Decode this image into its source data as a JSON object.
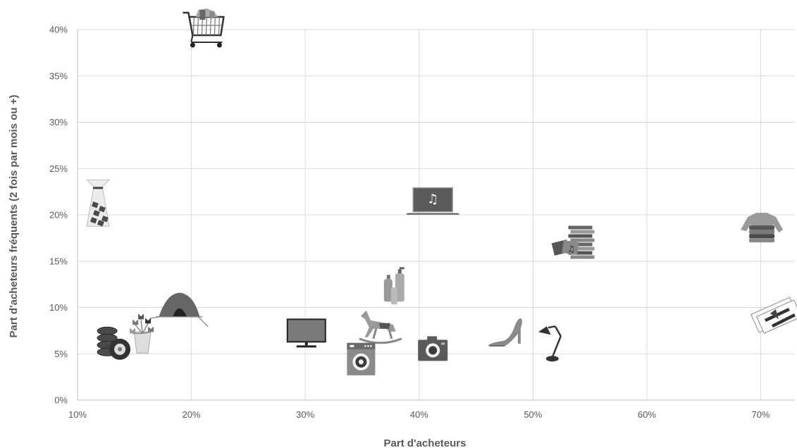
{
  "chart_data": {
    "type": "scatter",
    "title": "",
    "xlabel": "Part d'acheteurs",
    "ylabel": "Part d'acheteurs fréquents (2 fois par mois ou +)",
    "xlim": [
      0.1,
      0.73
    ],
    "ylim": [
      0.0,
      0.4
    ],
    "x_ticks": [
      {
        "value": 0.1,
        "label": "10%"
      },
      {
        "value": 0.2,
        "label": "20%"
      },
      {
        "value": 0.3,
        "label": "30%"
      },
      {
        "value": 0.4,
        "label": "40%"
      },
      {
        "value": 0.5,
        "label": "50%"
      },
      {
        "value": 0.6,
        "label": "60%"
      },
      {
        "value": 0.7,
        "label": "70%"
      }
    ],
    "y_ticks": [
      {
        "value": 0.0,
        "label": "0%"
      },
      {
        "value": 0.05,
        "label": "5%"
      },
      {
        "value": 0.1,
        "label": "10%"
      },
      {
        "value": 0.15,
        "label": "15%"
      },
      {
        "value": 0.2,
        "label": "20%"
      },
      {
        "value": 0.25,
        "label": "25%"
      },
      {
        "value": 0.3,
        "label": "30%"
      },
      {
        "value": 0.35,
        "label": "35%"
      },
      {
        "value": 0.4,
        "label": "40%"
      }
    ],
    "grid": true,
    "legend": false,
    "marker_color": "#5a5a5a",
    "points": [
      {
        "icon": "shopping-cart-icon",
        "x": 0.211,
        "y": 0.4
      },
      {
        "icon": "candy-bag-icon",
        "x": 0.118,
        "y": 0.215
      },
      {
        "icon": "laptop-music-icon",
        "x": 0.412,
        "y": 0.214
      },
      {
        "icon": "clothing-pile-icon",
        "x": 0.701,
        "y": 0.187
      },
      {
        "icon": "books-music-icon",
        "x": 0.536,
        "y": 0.17
      },
      {
        "icon": "cosmetics-bottles-icon",
        "x": 0.379,
        "y": 0.12
      },
      {
        "icon": "tent-icon",
        "x": 0.19,
        "y": 0.096
      },
      {
        "icon": "plane-tickets-icon",
        "x": 0.712,
        "y": 0.092
      },
      {
        "icon": "rocking-horse-icon",
        "x": 0.366,
        "y": 0.08
      },
      {
        "icon": "flowers-icon",
        "x": 0.157,
        "y": 0.072
      },
      {
        "icon": "television-icon",
        "x": 0.301,
        "y": 0.072
      },
      {
        "icon": "high-heel-shoe-icon",
        "x": 0.483,
        "y": 0.07
      },
      {
        "icon": "tires-icon",
        "x": 0.131,
        "y": 0.061
      },
      {
        "icon": "desk-lamp-icon",
        "x": 0.517,
        "y": 0.063
      },
      {
        "icon": "camera-icon",
        "x": 0.412,
        "y": 0.056
      },
      {
        "icon": "washing-machine-icon",
        "x": 0.349,
        "y": 0.045
      }
    ]
  }
}
